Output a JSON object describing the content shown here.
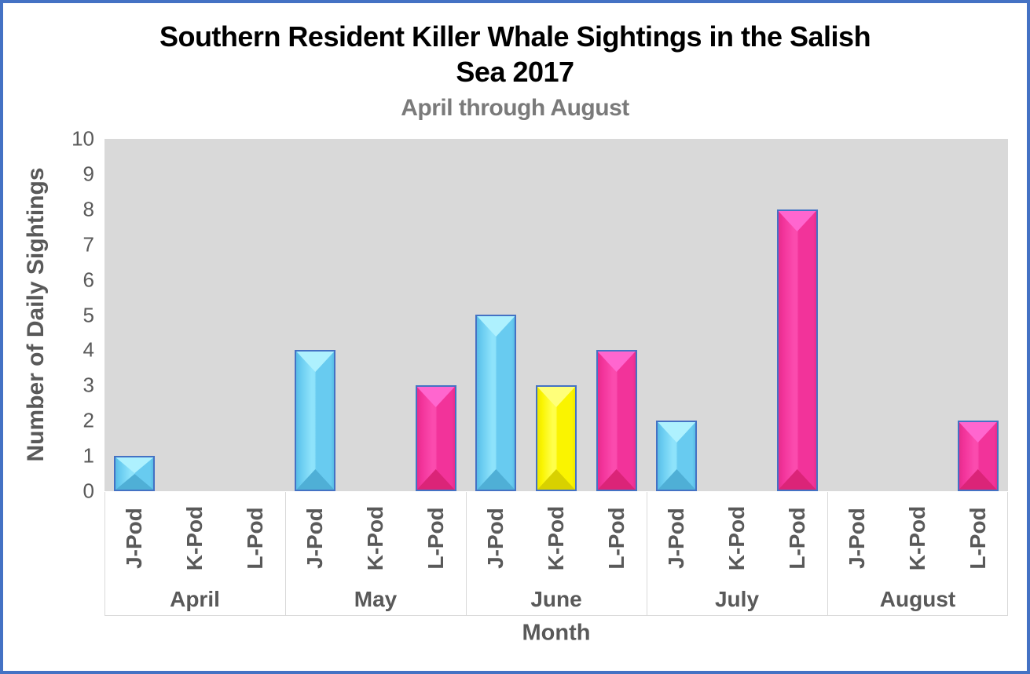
{
  "chart": {
    "title_lines": [
      "Southern Resident Killer Whale Sightings in the Salish",
      "Sea 2017"
    ],
    "subtitle": "April through August",
    "y_axis_title": "Number of Daily Sightings",
    "x_axis_title": "Month"
  },
  "colors": {
    "title_text": "#000000",
    "subtitle_text": "#7A7A7A",
    "axis_text": "#595959",
    "plot_bg": "#D9D9D9",
    "bar_border": "#4472C4",
    "frame_border": "#4472C4",
    "divider": "#D9D9D9"
  },
  "chart_data": {
    "type": "bar",
    "title": "Southern Resident Killer Whale Sightings in the Salish Sea 2017",
    "subtitle": "April through August",
    "xlabel": "Month",
    "ylabel": "Number of Daily Sightings",
    "ylim": [
      0,
      10
    ],
    "y_ticks": [
      0,
      1,
      2,
      3,
      4,
      5,
      6,
      7,
      8,
      9,
      10
    ],
    "grid": false,
    "legend": "none",
    "plot_background": "#D9D9D9",
    "bar_border_color": "#4472C4",
    "categories": [
      "April",
      "May",
      "June",
      "July",
      "August"
    ],
    "sub_categories": [
      "J-Pod",
      "K-Pod",
      "L-Pod"
    ],
    "series": [
      {
        "name": "J-Pod",
        "values": [
          1,
          4,
          5,
          2,
          0
        ],
        "color": "#68CBF0",
        "bevel": {
          "light": "#8EE3FB",
          "dark": "#59BCE5",
          "top": "#AEF1FE",
          "bottom": "#4FAFD6"
        }
      },
      {
        "name": "K-Pod",
        "values": [
          0,
          0,
          3,
          0,
          0
        ],
        "color": "#FAF400",
        "bevel": {
          "light": "#FFFF4A",
          "dark": "#EDE600",
          "top": "#FFFF7A",
          "bottom": "#D8D100"
        }
      },
      {
        "name": "L-Pod",
        "values": [
          0,
          3,
          4,
          8,
          2
        ],
        "color": "#F2339A",
        "bevel": {
          "light": "#FB4BAE",
          "dark": "#E52D8C",
          "top": "#FF66CF",
          "bottom": "#DB2478"
        }
      }
    ]
  }
}
